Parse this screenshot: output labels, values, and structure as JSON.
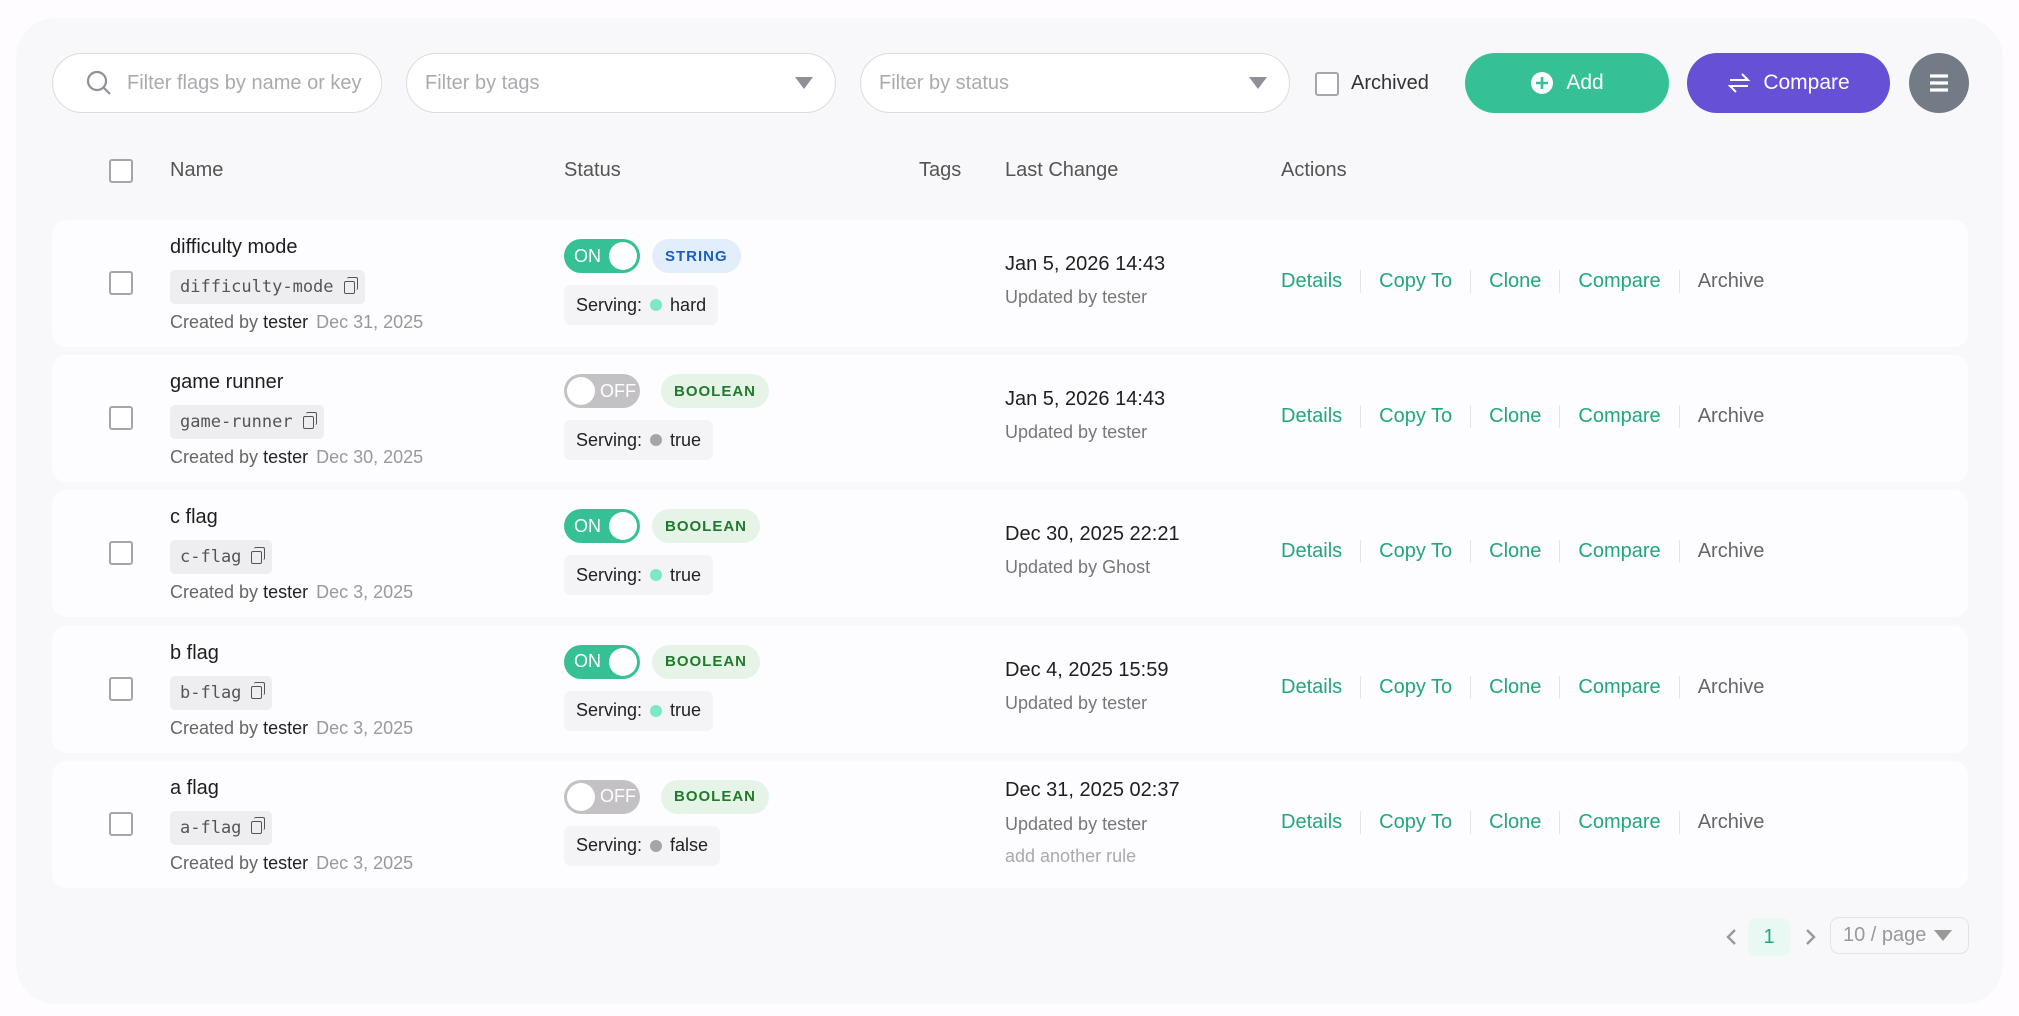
{
  "toolbar": {
    "search_placeholder": "Filter flags by name or key",
    "tags_placeholder": "Filter by tags",
    "status_placeholder": "Filter by status",
    "archived_label": "Archived",
    "add_label": "Add",
    "compare_label": "Compare"
  },
  "columns": {
    "name": "Name",
    "status": "Status",
    "tags": "Tags",
    "last_change": "Last Change",
    "actions": "Actions"
  },
  "actions": [
    "Details",
    "Copy To",
    "Clone",
    "Compare",
    "Archive"
  ],
  "serving_label": "Serving:",
  "colors": {
    "accent": "#35c195",
    "compare": "#6650d6",
    "menu": "#737b87"
  },
  "rows": [
    {
      "name": "difficulty mode",
      "key": "difficulty-mode",
      "created_by_label": "Created by",
      "created_by": "tester",
      "created": "Dec 31, 2025",
      "enabled": true,
      "toggle": "ON",
      "type": "STRING",
      "serving": "hard",
      "last_change": "Jan 5, 2026 14:43",
      "updated": "Updated by tester",
      "note": ""
    },
    {
      "name": "game runner",
      "key": "game-runner",
      "created_by_label": "Created by",
      "created_by": "tester",
      "created": "Dec 30, 2025",
      "enabled": false,
      "toggle": "OFF",
      "type": "BOOLEAN",
      "serving": "true",
      "last_change": "Jan 5, 2026 14:43",
      "updated": "Updated by tester",
      "note": ""
    },
    {
      "name": "c flag",
      "key": "c-flag",
      "created_by_label": "Created by",
      "created_by": "tester",
      "created": "Dec 3, 2025",
      "enabled": true,
      "toggle": "ON",
      "type": "BOOLEAN",
      "serving": "true",
      "last_change": "Dec 30, 2025 22:21",
      "updated": "Updated by Ghost",
      "note": ""
    },
    {
      "name": "b flag",
      "key": "b-flag",
      "created_by_label": "Created by",
      "created_by": "tester",
      "created": "Dec 3, 2025",
      "enabled": true,
      "toggle": "ON",
      "type": "BOOLEAN",
      "serving": "true",
      "last_change": "Dec 4, 2025 15:59",
      "updated": "Updated by tester",
      "note": ""
    },
    {
      "name": "a flag",
      "key": "a-flag",
      "created_by_label": "Created by",
      "created_by": "tester",
      "created": "Dec 3, 2025",
      "enabled": false,
      "toggle": "OFF",
      "type": "BOOLEAN",
      "serving": "false",
      "last_change": "Dec 31, 2025 02:37",
      "updated": "Updated by tester",
      "note": "add another rule"
    }
  ],
  "pagination": {
    "current": "1",
    "page_size": "10 / page"
  }
}
